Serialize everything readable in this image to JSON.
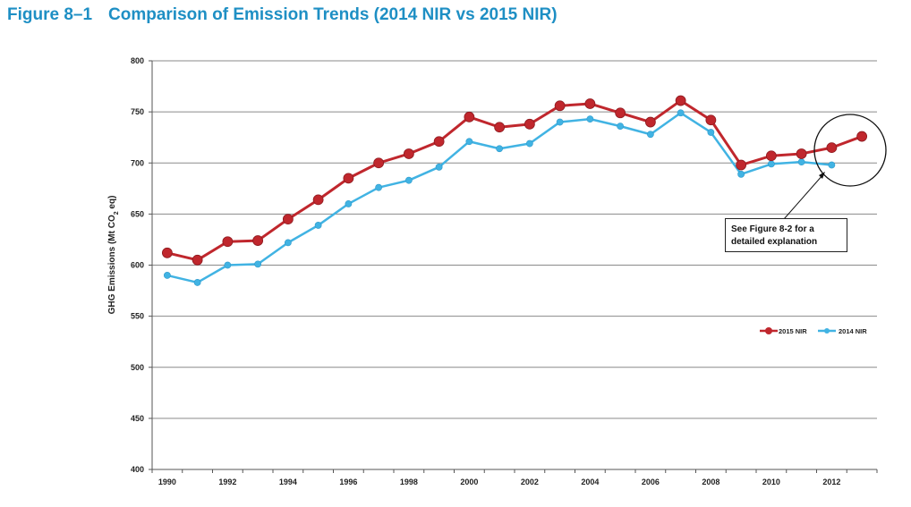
{
  "figure": {
    "number": "Figure 8–1",
    "title": "Comparison of Emission Trends (2014 NIR vs 2015 NIR)"
  },
  "callout": {
    "line1": "See Figure 8-2 for a",
    "line2": "detailed explanation"
  },
  "chart_data": {
    "type": "line",
    "title": "Comparison of Emission Trends (2014 NIR vs 2015 NIR)",
    "ylabel_main": "GHG Emissions (Mt CO",
    "ylabel_sub": "2",
    "ylabel_end": " eq)",
    "ylim": [
      400,
      800
    ],
    "yticks": [
      400,
      450,
      500,
      550,
      600,
      650,
      700,
      750,
      800
    ],
    "xlim": [
      1990,
      2013
    ],
    "xtick_labels": [
      "1990",
      "1992",
      "1994",
      "1996",
      "1998",
      "2000",
      "2002",
      "2004",
      "2006",
      "2008",
      "2010",
      "2012"
    ],
    "grid": "horizontal",
    "legend_position": "right",
    "series": [
      {
        "name": "2015 NIR",
        "color": "#c0272d",
        "x": [
          1990,
          1991,
          1992,
          1993,
          1994,
          1995,
          1996,
          1997,
          1998,
          1999,
          2000,
          2001,
          2002,
          2003,
          2004,
          2005,
          2006,
          2007,
          2008,
          2009,
          2010,
          2011,
          2012,
          2013
        ],
        "values": [
          612,
          605,
          623,
          624,
          645,
          664,
          685,
          700,
          709,
          721,
          745,
          735,
          738,
          756,
          758,
          749,
          740,
          761,
          742,
          698,
          707,
          709,
          715,
          726
        ]
      },
      {
        "name": "2014 NIR",
        "color": "#41b3e3",
        "x": [
          1990,
          1991,
          1992,
          1993,
          1994,
          1995,
          1996,
          1997,
          1998,
          1999,
          2000,
          2001,
          2002,
          2003,
          2004,
          2005,
          2006,
          2007,
          2008,
          2009,
          2010,
          2011,
          2012
        ],
        "values": [
          590,
          583,
          600,
          601,
          622,
          639,
          660,
          676,
          683,
          696,
          721,
          714,
          719,
          740,
          743,
          736,
          728,
          749,
          730,
          689,
          699,
          701,
          698
        ]
      }
    ]
  }
}
